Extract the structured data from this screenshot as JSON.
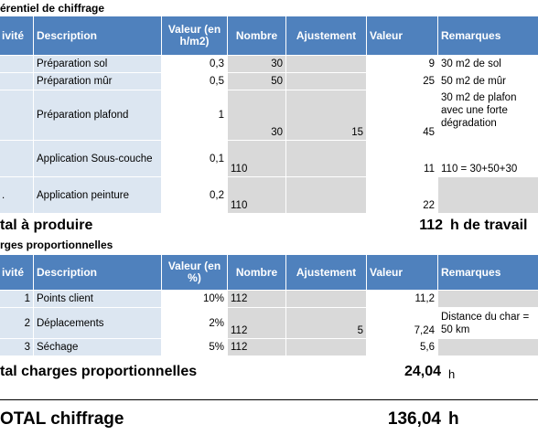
{
  "section1": {
    "title": "érentiel de chiffrage",
    "headers": [
      "ivité",
      "Description",
      "Valeur (en h/m2)",
      "Nombre",
      "Ajustement",
      "Valeur",
      "Remarques"
    ],
    "rows": [
      {
        "act": "",
        "desc": "Préparation sol",
        "val": "0,3",
        "nombre": "30",
        "ajust": "",
        "valeur": "9",
        "rem": "30 m2 de sol"
      },
      {
        "act": "",
        "desc": "Préparation mûr",
        "val": "0,5",
        "nombre": "50",
        "ajust": "",
        "valeur": "25",
        "rem": "50 m2 de mûr"
      },
      {
        "act": "",
        "desc": "Préparation plafond",
        "val": "1",
        "nombre": "30",
        "ajust": "15",
        "valeur": "45",
        "rem": "30 m2 de plafon avec une forte dégradation"
      },
      {
        "act": "",
        "desc": "Application Sous-couche",
        "val": "0,1",
        "nombre": "110",
        "ajust": "",
        "valeur": "11",
        "rem": "110 = 30+50+30"
      },
      {
        "act": ".",
        "desc": "Application peinture",
        "val": "0,2",
        "nombre": "110",
        "ajust": "",
        "valeur": "22",
        "rem": ""
      }
    ],
    "total_label": "tal à produire",
    "total_value": "112",
    "total_unit": "h de travail"
  },
  "section2": {
    "title": "rges proportionnelles",
    "headers": [
      "ivité",
      "Description",
      "Valeur (en %)",
      "Nombre",
      "Ajustement",
      "Valeur",
      "Remarques"
    ],
    "rows": [
      {
        "act": "1",
        "desc": "Points client",
        "val": "10%",
        "nombre": "112",
        "ajust": "",
        "valeur": "11,2",
        "rem": ""
      },
      {
        "act": "2",
        "desc": "Déplacements",
        "val": "2%",
        "nombre": "112",
        "ajust": "5",
        "valeur": "7,24",
        "rem": "Distance du char = 50 km"
      },
      {
        "act": "3",
        "desc": "Séchage",
        "val": "5%",
        "nombre": "112",
        "ajust": "",
        "valeur": "5,6",
        "rem": ""
      }
    ],
    "total_label": "tal charges proportionnelles",
    "total_value": "24,04",
    "total_unit": "h"
  },
  "grand_total": {
    "label": "OTAL chiffrage",
    "value": "136,04",
    "unit": "h"
  }
}
